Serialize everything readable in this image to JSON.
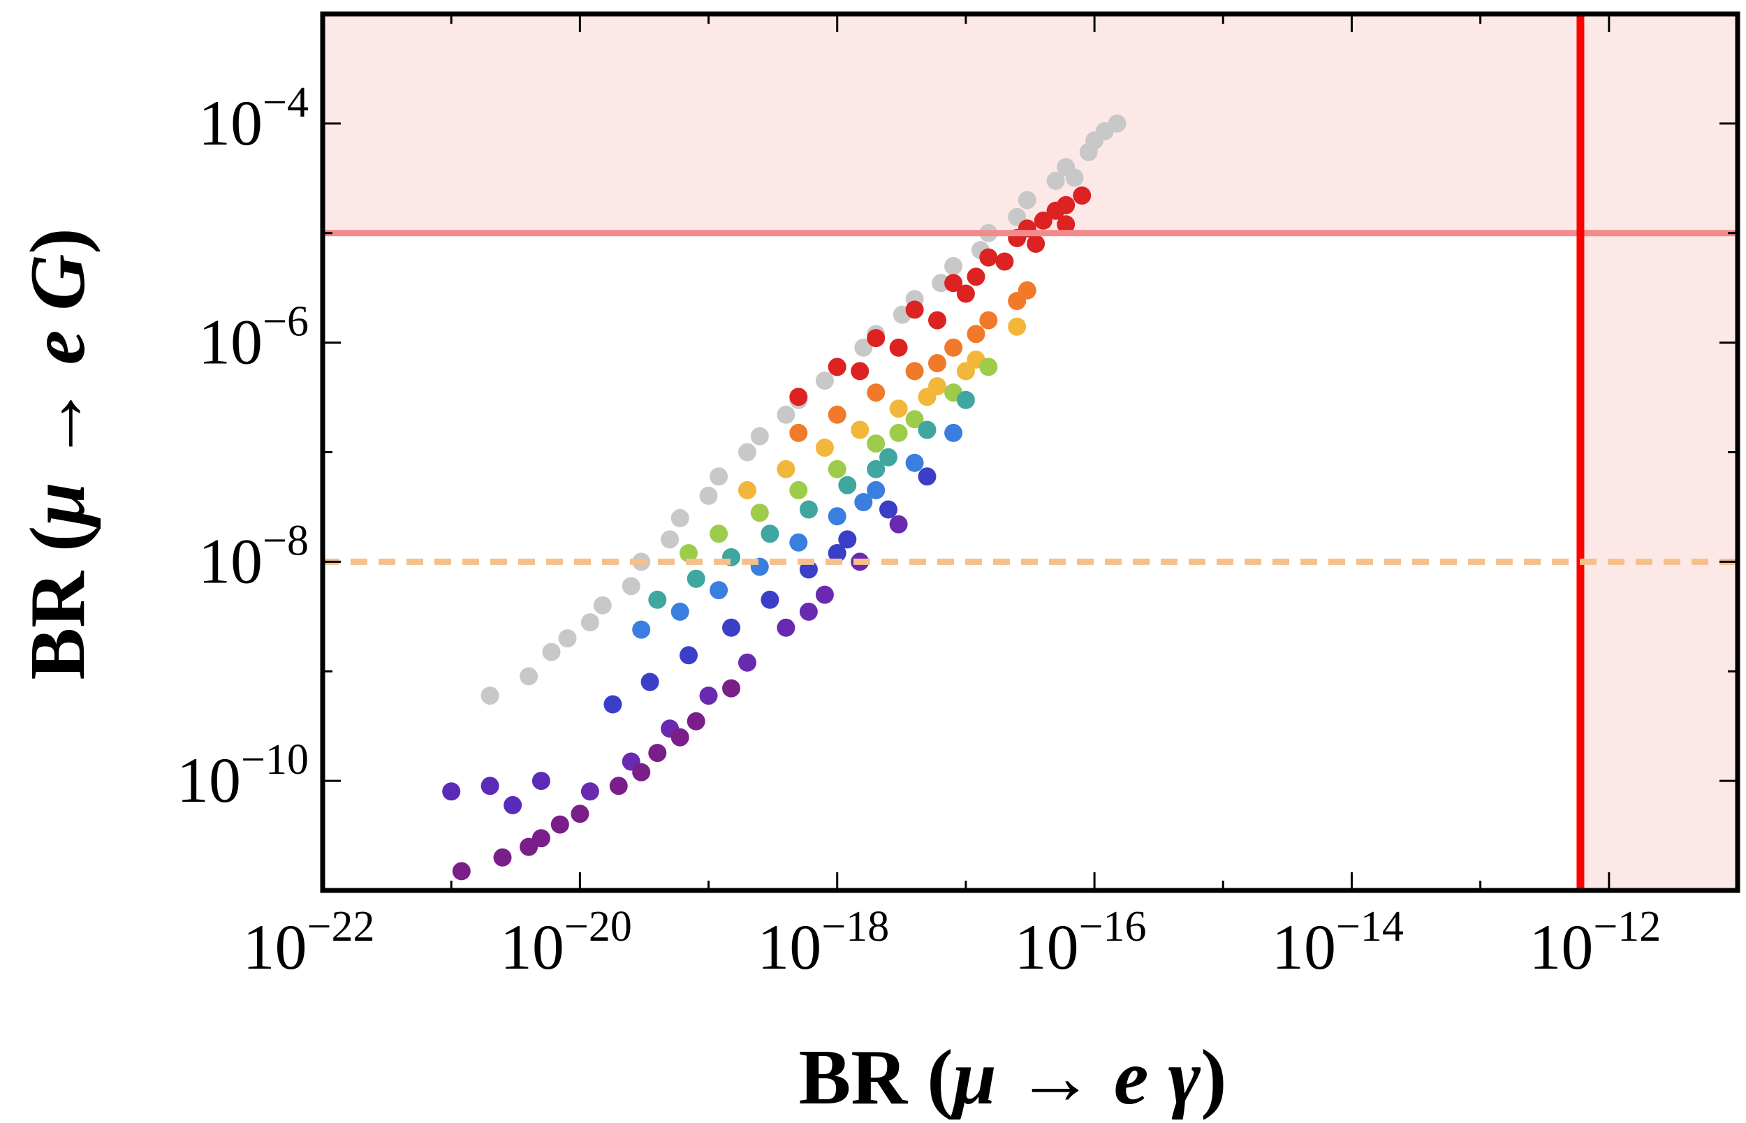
{
  "chart_data": {
    "type": "scatter",
    "title": "",
    "xlabel": {
      "prefix": "BR",
      "open": " (",
      "particle_in": "μ",
      "arrow": " → ",
      "particle_out": "e",
      "gauge": " γ",
      "close": ")"
    },
    "ylabel": {
      "prefix": "BR",
      "open": " (",
      "particle_in": "μ",
      "arrow": " → ",
      "particle_out": "e",
      "gauge": " G",
      "close": ")"
    },
    "x_scale": "log",
    "y_scale": "log",
    "xlim": [
      1e-22,
      1e-11
    ],
    "ylim": [
      1e-11,
      0.001
    ],
    "x_ticks": [
      {
        "value": 1e-22,
        "base": "10",
        "exp": "−22"
      },
      {
        "value": 1e-20,
        "base": "10",
        "exp": "−20"
      },
      {
        "value": 1e-18,
        "base": "10",
        "exp": "−18"
      },
      {
        "value": 1e-16,
        "base": "10",
        "exp": "−16"
      },
      {
        "value": 1e-14,
        "base": "10",
        "exp": "−14"
      },
      {
        "value": 1e-12,
        "base": "10",
        "exp": "−12"
      }
    ],
    "y_ticks": [
      {
        "value": 1e-10,
        "base": "10",
        "exp": "−10"
      },
      {
        "value": 1e-08,
        "base": "10",
        "exp": "−8"
      },
      {
        "value": 1e-06,
        "base": "10",
        "exp": "−6"
      },
      {
        "value": 0.0001,
        "base": "10",
        "exp": "−4"
      }
    ],
    "grid": false,
    "legend": "none",
    "excluded_regions": [
      {
        "name": "",
        "axis": "y",
        "from": 1e-05,
        "color": "#fde8e8"
      },
      {
        "name": "",
        "axis": "x",
        "from": 6e-13,
        "color": "#fde8e8"
      }
    ],
    "reference_lines": [
      {
        "name": "",
        "axis": "y",
        "value": 1e-05,
        "color": "#f28c8c",
        "style": "solid"
      },
      {
        "name": "",
        "axis": "x",
        "value": 6e-13,
        "color": "#ff0000",
        "style": "solid"
      },
      {
        "name": "",
        "axis": "y",
        "value": 1e-08,
        "color": "#f5c08a",
        "style": "dashed"
      }
    ],
    "series": [
      {
        "color": "#c8c8c8",
        "points": [
          [
            1.5e-16,
            0.0001
          ],
          [
            1e-16,
            7e-05
          ],
          [
            6e-17,
            4e-05
          ],
          [
            3e-17,
            2e-05
          ],
          [
            1.5e-17,
            1e-05
          ],
          [
            8e-18,
            5e-06
          ],
          [
            4e-18,
            2.5e-06
          ],
          [
            2e-18,
            1.2e-06
          ],
          [
            1e-18,
            6e-07
          ],
          [
            5e-19,
            3e-07
          ],
          [
            2.5e-19,
            1.4e-07
          ],
          [
            1.2e-19,
            6e-08
          ],
          [
            6e-20,
            2.5e-08
          ],
          [
            3e-20,
            1e-08
          ],
          [
            1.5e-20,
            4e-09
          ],
          [
            8e-21,
            2e-09
          ],
          [
            4e-21,
            9e-10
          ],
          [
            2e-21,
            6e-10
          ],
          [
            6e-21,
            1.5e-09
          ],
          [
            1.2e-20,
            2.8e-09
          ],
          [
            2.5e-20,
            6e-09
          ],
          [
            5e-20,
            1.6e-08
          ],
          [
            1e-19,
            4e-08
          ],
          [
            2e-19,
            1e-07
          ],
          [
            4e-19,
            2.2e-07
          ],
          [
            8e-19,
            4.5e-07
          ],
          [
            1.6e-18,
            9e-07
          ],
          [
            3.2e-18,
            1.8e-06
          ],
          [
            6.4e-18,
            3.5e-06
          ],
          [
            1.3e-17,
            7e-06
          ],
          [
            2.5e-17,
            1.4e-05
          ],
          [
            5e-17,
            3e-05
          ],
          [
            9e-17,
            5.5e-05
          ],
          [
            1.2e-16,
            8.5e-05
          ],
          [
            7e-17,
            3.2e-05
          ]
        ]
      },
      {
        "color": "#dd2222",
        "points": [
          [
            8e-17,
            2.2e-05
          ],
          [
            6e-17,
            1.8e-05
          ],
          [
            4e-17,
            1.3e-05
          ],
          [
            2.5e-17,
            9e-06
          ],
          [
            1.5e-17,
            6e-06
          ],
          [
            8e-18,
            3.5e-06
          ],
          [
            4e-18,
            2e-06
          ],
          [
            2e-18,
            1.1e-06
          ],
          [
            1e-18,
            6e-07
          ],
          [
            5e-19,
            3.2e-07
          ],
          [
            1.2e-17,
            4e-06
          ],
          [
            2e-17,
            5.5e-06
          ],
          [
            3.5e-17,
            8e-06
          ],
          [
            6e-17,
            1.2e-05
          ],
          [
            1e-17,
            2.8e-06
          ],
          [
            6e-18,
            1.6e-06
          ],
          [
            3e-18,
            9e-07
          ],
          [
            1.5e-18,
            5.5e-07
          ],
          [
            5e-17,
            1.6e-05
          ],
          [
            3e-17,
            1.1e-05
          ]
        ]
      },
      {
        "color": "#f07a2a",
        "points": [
          [
            3e-17,
            3e-06
          ],
          [
            1.5e-17,
            1.6e-06
          ],
          [
            8e-18,
            9e-07
          ],
          [
            4e-18,
            5.5e-07
          ],
          [
            2e-18,
            3.5e-07
          ],
          [
            1e-18,
            2.2e-07
          ],
          [
            5e-19,
            1.5e-07
          ],
          [
            6e-18,
            6.5e-07
          ],
          [
            1.2e-17,
            1.2e-06
          ],
          [
            2.5e-17,
            2.4e-06
          ]
        ]
      },
      {
        "color": "#f2b63a",
        "points": [
          [
            2.5e-17,
            1.4e-06
          ],
          [
            1.2e-17,
            7e-07
          ],
          [
            6e-18,
            4e-07
          ],
          [
            3e-18,
            2.5e-07
          ],
          [
            1.5e-18,
            1.6e-07
          ],
          [
            8e-19,
            1.1e-07
          ],
          [
            4e-19,
            7e-08
          ],
          [
            2e-19,
            4.5e-08
          ],
          [
            5e-18,
            3.2e-07
          ],
          [
            1e-17,
            5.5e-07
          ]
        ]
      },
      {
        "color": "#9ccc4a",
        "points": [
          [
            1.5e-17,
            6e-07
          ],
          [
            8e-18,
            3.5e-07
          ],
          [
            4e-18,
            2e-07
          ],
          [
            2e-18,
            1.2e-07
          ],
          [
            1e-18,
            7e-08
          ],
          [
            5e-19,
            4.5e-08
          ],
          [
            2.5e-19,
            2.8e-08
          ],
          [
            1.2e-19,
            1.8e-08
          ],
          [
            7e-20,
            1.2e-08
          ],
          [
            3e-18,
            1.5e-07
          ]
        ]
      },
      {
        "color": "#3fa6a0",
        "points": [
          [
            1e-17,
            3e-07
          ],
          [
            5e-18,
            1.6e-07
          ],
          [
            2.5e-18,
            9e-08
          ],
          [
            1.2e-18,
            5e-08
          ],
          [
            6e-19,
            3e-08
          ],
          [
            3e-19,
            1.8e-08
          ],
          [
            1.5e-19,
            1.1e-08
          ],
          [
            8e-20,
            7e-09
          ],
          [
            4e-20,
            4.5e-09
          ],
          [
            2e-18,
            7e-08
          ]
        ]
      },
      {
        "color": "#3a7ee0",
        "points": [
          [
            8e-18,
            1.5e-07
          ],
          [
            4e-18,
            8e-08
          ],
          [
            2e-18,
            4.5e-08
          ],
          [
            1e-18,
            2.6e-08
          ],
          [
            5e-19,
            1.5e-08
          ],
          [
            2.5e-19,
            9e-09
          ],
          [
            1.2e-19,
            5.5e-09
          ],
          [
            6e-20,
            3.5e-09
          ],
          [
            3e-20,
            2.4e-09
          ],
          [
            1.6e-18,
            3.5e-08
          ]
        ]
      },
      {
        "color": "#3b3fc8",
        "points": [
          [
            5e-18,
            6e-08
          ],
          [
            2.5e-18,
            3e-08
          ],
          [
            1.2e-18,
            1.6e-08
          ],
          [
            6e-19,
            8.5e-09
          ],
          [
            3e-19,
            4.5e-09
          ],
          [
            1.5e-19,
            2.5e-09
          ],
          [
            7e-20,
            1.4e-09
          ],
          [
            3.5e-20,
            8e-10
          ],
          [
            1.8e-20,
            5e-10
          ],
          [
            1e-18,
            1.2e-08
          ]
        ]
      },
      {
        "color": "#6a2ab0",
        "points": [
          [
            3e-18,
            2.2e-08
          ],
          [
            1.5e-18,
            1e-08
          ],
          [
            8e-19,
            5e-09
          ],
          [
            4e-19,
            2.5e-09
          ],
          [
            2e-19,
            1.2e-09
          ],
          [
            1e-19,
            6e-10
          ],
          [
            5e-20,
            3e-10
          ],
          [
            2.5e-20,
            1.5e-10
          ],
          [
            1.2e-20,
            8e-11
          ],
          [
            6e-19,
            3.5e-09
          ]
        ]
      },
      {
        "color": "#7a1e8a",
        "points": [
          [
            1.5e-19,
            7e-10
          ],
          [
            8e-20,
            3.5e-10
          ],
          [
            4e-20,
            1.8e-10
          ],
          [
            2e-20,
            9e-11
          ],
          [
            1e-20,
            5e-11
          ],
          [
            5e-21,
            3e-11
          ],
          [
            2.5e-21,
            2e-11
          ],
          [
            1.2e-21,
            1.5e-11
          ],
          [
            3e-20,
            1.2e-10
          ],
          [
            6e-20,
            2.5e-10
          ],
          [
            7e-21,
            4e-11
          ],
          [
            4e-21,
            2.5e-11
          ]
        ]
      },
      {
        "color": "#5a2ab8",
        "points": [
          [
            2e-21,
            9e-11
          ],
          [
            5e-21,
            1e-10
          ],
          [
            1e-21,
            8e-11
          ],
          [
            3e-21,
            6e-11
          ]
        ]
      }
    ]
  }
}
